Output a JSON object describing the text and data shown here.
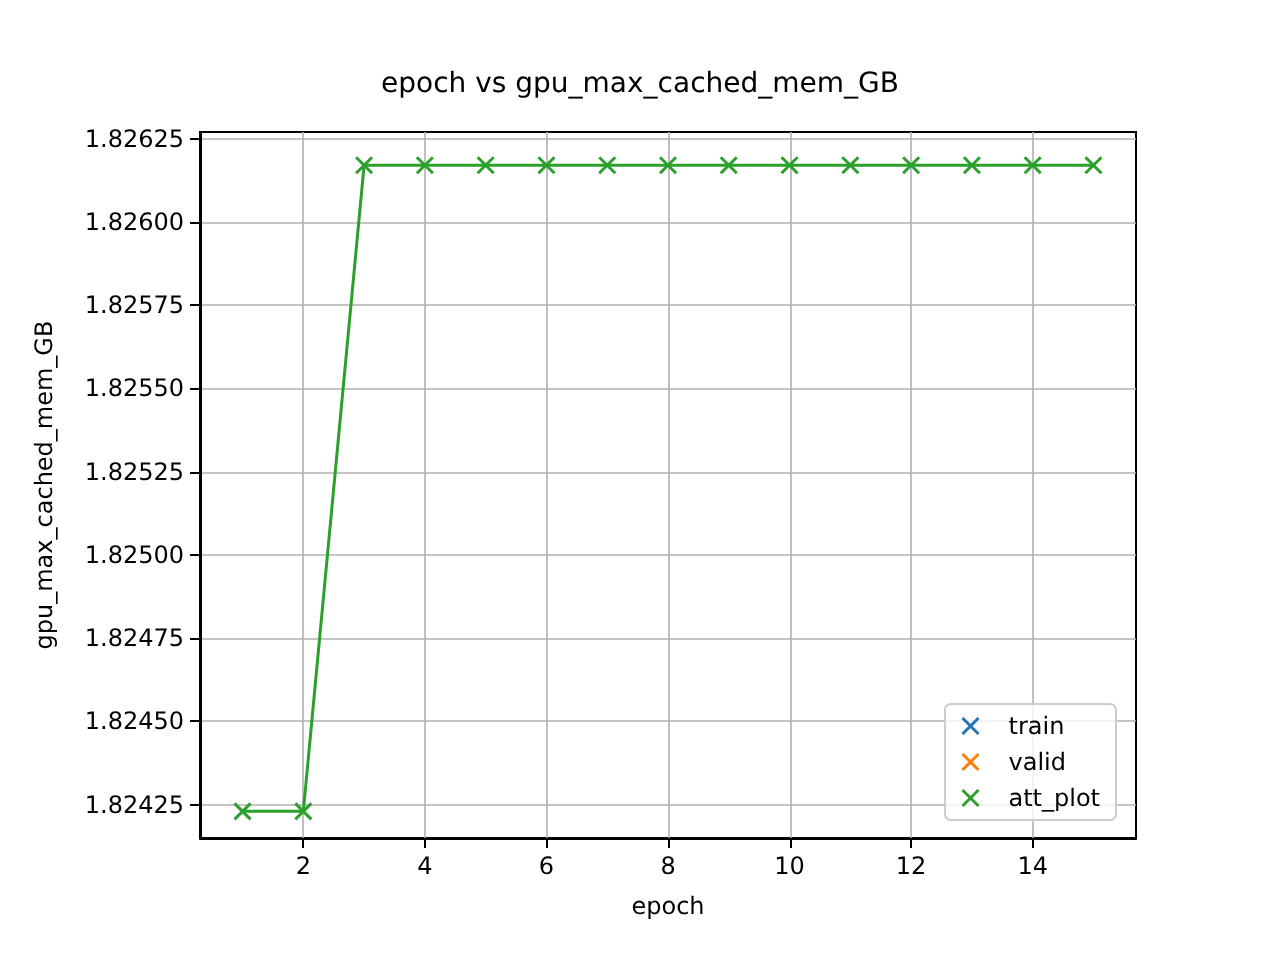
{
  "chart_data": {
    "type": "line",
    "title": "epoch vs gpu_max_cached_mem_GB",
    "xlabel": "epoch",
    "ylabel": "gpu_max_cached_mem_GB",
    "x": [
      1,
      2,
      3,
      4,
      5,
      6,
      7,
      8,
      9,
      10,
      11,
      12,
      13,
      14,
      15
    ],
    "series": [
      {
        "name": "train",
        "color": "#1f77b4",
        "values": [
          null,
          null,
          null,
          null,
          null,
          null,
          null,
          null,
          null,
          null,
          null,
          null,
          null,
          null,
          null
        ]
      },
      {
        "name": "valid",
        "color": "#ff7f0e",
        "values": [
          null,
          null,
          null,
          null,
          null,
          null,
          null,
          null,
          null,
          null,
          null,
          null,
          null,
          null,
          null
        ]
      },
      {
        "name": "att_plot",
        "color": "#2ca02c",
        "values": [
          1.82423,
          1.82423,
          1.82617,
          1.82617,
          1.82617,
          1.82617,
          1.82617,
          1.82617,
          1.82617,
          1.82617,
          1.82617,
          1.82617,
          1.82617,
          1.82617,
          1.82617
        ]
      }
    ],
    "xlim": [
      0.3,
      15.7
    ],
    "xticks": [
      2,
      4,
      6,
      8,
      10,
      12,
      14
    ],
    "ylim": [
      1.82415,
      1.82627
    ],
    "yticks": [
      1.82425,
      {
        "value": 1.8245,
        "label": "1.82450"
      },
      1.82475,
      {
        "value": 1.825,
        "label": "1.82500"
      },
      1.82525,
      {
        "value": 1.8255,
        "label": "1.82550"
      },
      1.82575,
      {
        "value": 1.826,
        "label": "1.82600"
      },
      1.82625
    ],
    "grid": true,
    "legend": "bottom right",
    "marker": "cross",
    "line_style": "solid"
  }
}
